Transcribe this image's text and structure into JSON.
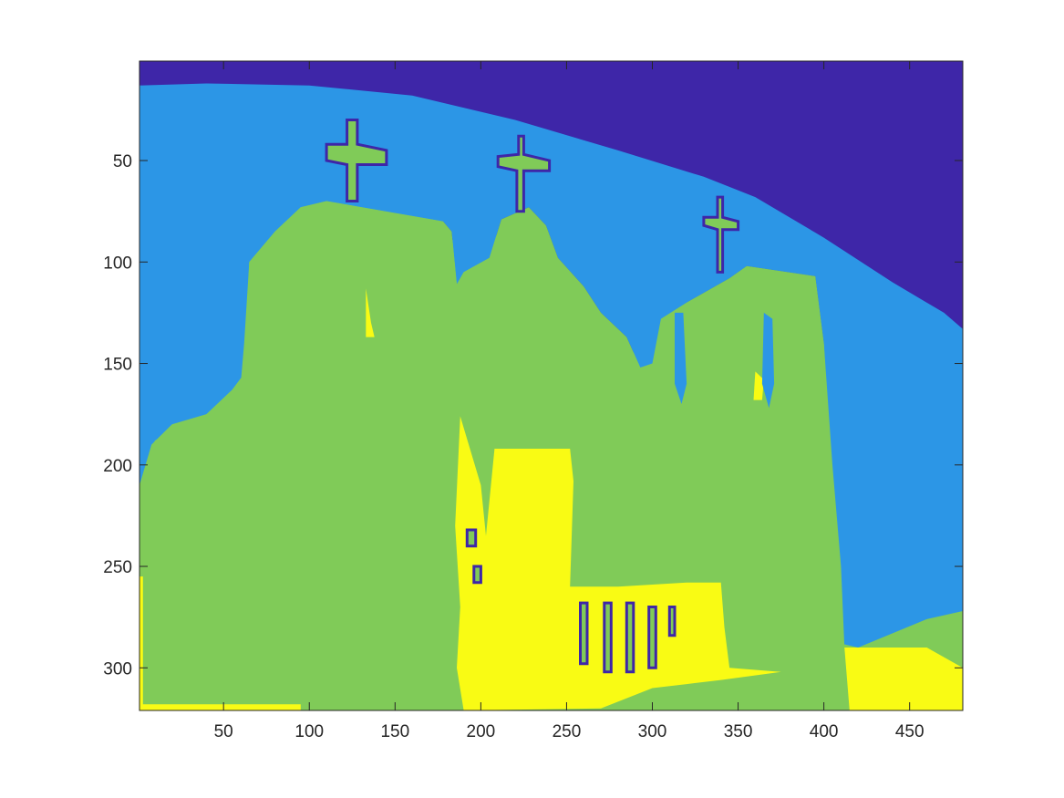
{
  "chart_data": {
    "type": "heatmap",
    "title": "",
    "xlabel": "",
    "ylabel": "",
    "xlim": [
      1,
      481
    ],
    "ylim": [
      321,
      1
    ],
    "y_reversed": true,
    "x_ticks": [
      50,
      100,
      150,
      200,
      250,
      300,
      350,
      400,
      450
    ],
    "y_ticks": [
      50,
      100,
      150,
      200,
      250,
      300
    ],
    "image_width": 481,
    "image_height": 321,
    "colormap": "parula",
    "grid": false,
    "legend": "none",
    "cluster_colors": {
      "1": "#3e26a8",
      "2": "#2c96e6",
      "3": "#80cb58",
      "4": "#f9fb14"
    },
    "regions": [
      {
        "label": 1,
        "name": "upper-sky",
        "outline": [
          [
            1,
            1
          ],
          [
            481,
            1
          ],
          [
            481,
            170
          ],
          [
            400,
            140
          ],
          [
            395,
            107
          ],
          [
            355,
            102
          ],
          [
            345,
            108
          ],
          [
            320,
            120
          ],
          [
            300,
            150
          ],
          [
            280,
            140
          ],
          [
            260,
            120
          ],
          [
            240,
            95
          ],
          [
            230,
            80
          ],
          [
            200,
            90
          ],
          [
            190,
            100
          ],
          [
            178,
            80
          ],
          [
            110,
            60
          ],
          [
            80,
            70
          ],
          [
            60,
            45
          ],
          [
            20,
            15
          ],
          [
            1,
            13
          ]
        ]
      },
      {
        "label": 2,
        "name": "lower-sky",
        "outline": [
          [
            1,
            13
          ],
          [
            40,
            12
          ],
          [
            100,
            13
          ],
          [
            160,
            18
          ],
          [
            220,
            30
          ],
          [
            280,
            45
          ],
          [
            330,
            58
          ],
          [
            360,
            68
          ],
          [
            400,
            88
          ],
          [
            440,
            110
          ],
          [
            470,
            125
          ],
          [
            481,
            133
          ],
          [
            481,
            272
          ],
          [
            460,
            276
          ],
          [
            420,
            290
          ],
          [
            410,
            288
          ],
          [
            400,
            140
          ],
          [
            395,
            107
          ],
          [
            355,
            102
          ],
          [
            345,
            108
          ],
          [
            320,
            120
          ],
          [
            305,
            150
          ],
          [
            293,
            152
          ],
          [
            285,
            137
          ],
          [
            270,
            125
          ],
          [
            260,
            112
          ],
          [
            245,
            98
          ],
          [
            238,
            82
          ],
          [
            228,
            73
          ],
          [
            212,
            79
          ],
          [
            205,
            98
          ],
          [
            190,
            105
          ],
          [
            186,
            111
          ],
          [
            183,
            85
          ],
          [
            178,
            80
          ],
          [
            110,
            70
          ],
          [
            95,
            73
          ],
          [
            80,
            85
          ],
          [
            65,
            100
          ],
          [
            62,
            155
          ],
          [
            55,
            163
          ],
          [
            40,
            175
          ],
          [
            20,
            180
          ],
          [
            8,
            190
          ],
          [
            1,
            210
          ]
        ]
      },
      {
        "label": 3,
        "name": "church-facade",
        "outline": [
          [
            1,
            212
          ],
          [
            10,
            188
          ],
          [
            25,
            180
          ],
          [
            40,
            176
          ],
          [
            60,
            160
          ],
          [
            62,
            140
          ],
          [
            65,
            100
          ],
          [
            80,
            85
          ],
          [
            95,
            73
          ],
          [
            110,
            70
          ],
          [
            178,
            80
          ],
          [
            183,
            85
          ],
          [
            186,
            111
          ],
          [
            190,
            105
          ],
          [
            205,
            98
          ],
          [
            212,
            79
          ],
          [
            228,
            73
          ],
          [
            238,
            82
          ],
          [
            245,
            98
          ],
          [
            260,
            112
          ],
          [
            270,
            125
          ],
          [
            285,
            137
          ],
          [
            293,
            152
          ],
          [
            300,
            150
          ],
          [
            305,
            128
          ],
          [
            320,
            120
          ],
          [
            345,
            108
          ],
          [
            355,
            102
          ],
          [
            395,
            107
          ],
          [
            400,
            140
          ],
          [
            405,
            200
          ],
          [
            410,
            250
          ],
          [
            412,
            290
          ],
          [
            430,
            290
          ],
          [
            460,
            283
          ],
          [
            481,
            278
          ],
          [
            481,
            321
          ],
          [
            1,
            321
          ]
        ]
      },
      {
        "label": 4,
        "name": "bright-face-left",
        "outline": [
          [
            1,
            255
          ],
          [
            3,
            255
          ],
          [
            3,
            318
          ],
          [
            95,
            318
          ],
          [
            95,
            321
          ],
          [
            1,
            321
          ]
        ]
      },
      {
        "label": 4,
        "name": "bright-doorway",
        "outline": [
          [
            188,
            176
          ],
          [
            200,
            210
          ],
          [
            203,
            235
          ],
          [
            208,
            192
          ],
          [
            252,
            192
          ],
          [
            254,
            208
          ],
          [
            252,
            260
          ],
          [
            280,
            260
          ],
          [
            320,
            258
          ],
          [
            340,
            258
          ],
          [
            342,
            280
          ],
          [
            345,
            300
          ],
          [
            375,
            302
          ],
          [
            340,
            306
          ],
          [
            320,
            308
          ],
          [
            300,
            310
          ],
          [
            270,
            320
          ],
          [
            190,
            321
          ],
          [
            186,
            300
          ],
          [
            188,
            270
          ],
          [
            185,
            230
          ]
        ]
      },
      {
        "label": 4,
        "name": "bright-ground-right",
        "outline": [
          [
            412,
            290
          ],
          [
            460,
            290
          ],
          [
            481,
            300
          ],
          [
            481,
            321
          ],
          [
            415,
            321
          ]
        ]
      },
      {
        "label": 4,
        "name": "bright-spot-left",
        "outline": [
          [
            133,
            113
          ],
          [
            136,
            130
          ],
          [
            138,
            137
          ],
          [
            133,
            137
          ]
        ]
      },
      {
        "label": 4,
        "name": "bright-spot-tower",
        "outline": [
          [
            360,
            154
          ],
          [
            365,
            158
          ],
          [
            364,
            168
          ],
          [
            359,
            168
          ]
        ]
      },
      {
        "label": 3,
        "name": "cross-left",
        "outline": [
          [
            122,
            30
          ],
          [
            128,
            30
          ],
          [
            128,
            42
          ],
          [
            145,
            45
          ],
          [
            145,
            52
          ],
          [
            128,
            52
          ],
          [
            128,
            70
          ],
          [
            122,
            70
          ],
          [
            122,
            52
          ],
          [
            110,
            50
          ],
          [
            110,
            42
          ],
          [
            122,
            42
          ]
        ]
      },
      {
        "label": 3,
        "name": "cross-center",
        "outline": [
          [
            222,
            38
          ],
          [
            225,
            38
          ],
          [
            225,
            47
          ],
          [
            240,
            50
          ],
          [
            240,
            55
          ],
          [
            225,
            55
          ],
          [
            225,
            75
          ],
          [
            221,
            75
          ],
          [
            221,
            55
          ],
          [
            210,
            53
          ],
          [
            210,
            48
          ],
          [
            222,
            47
          ]
        ]
      },
      {
        "label": 3,
        "name": "cross-right",
        "outline": [
          [
            338,
            68
          ],
          [
            341,
            68
          ],
          [
            341,
            78
          ],
          [
            350,
            80
          ],
          [
            350,
            84
          ],
          [
            341,
            84
          ],
          [
            341,
            105
          ],
          [
            338,
            105
          ],
          [
            338,
            84
          ],
          [
            330,
            82
          ],
          [
            330,
            78
          ],
          [
            338,
            78
          ]
        ]
      },
      {
        "label": 2,
        "name": "tower-slit-left",
        "outline": [
          [
            313,
            125
          ],
          [
            318,
            125
          ],
          [
            320,
            160
          ],
          [
            317,
            170
          ],
          [
            313,
            160
          ]
        ]
      },
      {
        "label": 2,
        "name": "tower-slit-right",
        "outline": [
          [
            365,
            125
          ],
          [
            370,
            128
          ],
          [
            371,
            160
          ],
          [
            368,
            172
          ],
          [
            364,
            160
          ]
        ]
      },
      {
        "label": 3,
        "name": "doorway-post-1",
        "outline": [
          [
            258,
            268
          ],
          [
            262,
            268
          ],
          [
            262,
            298
          ],
          [
            258,
            298
          ]
        ]
      },
      {
        "label": 3,
        "name": "doorway-post-2",
        "outline": [
          [
            272,
            268
          ],
          [
            276,
            268
          ],
          [
            276,
            302
          ],
          [
            272,
            302
          ]
        ]
      },
      {
        "label": 3,
        "name": "doorway-post-3",
        "outline": [
          [
            285,
            268
          ],
          [
            289,
            268
          ],
          [
            289,
            302
          ],
          [
            285,
            302
          ]
        ]
      },
      {
        "label": 3,
        "name": "doorway-post-4",
        "outline": [
          [
            298,
            270
          ],
          [
            302,
            270
          ],
          [
            302,
            300
          ],
          [
            298,
            300
          ]
        ]
      },
      {
        "label": 3,
        "name": "doorway-post-5",
        "outline": [
          [
            310,
            270
          ],
          [
            313,
            270
          ],
          [
            313,
            284
          ],
          [
            310,
            284
          ]
        ]
      },
      {
        "label": 3,
        "name": "doorway-blob-1",
        "outline": [
          [
            192,
            232
          ],
          [
            197,
            232
          ],
          [
            197,
            240
          ],
          [
            192,
            240
          ]
        ]
      },
      {
        "label": 3,
        "name": "doorway-blob-2",
        "outline": [
          [
            196,
            250
          ],
          [
            200,
            250
          ],
          [
            200,
            258
          ],
          [
            196,
            258
          ]
        ]
      }
    ]
  }
}
